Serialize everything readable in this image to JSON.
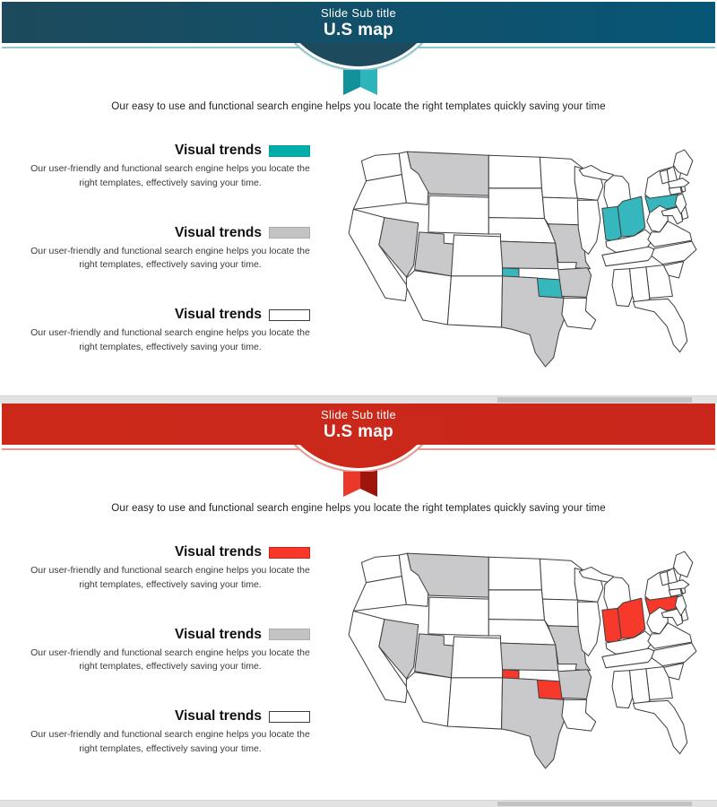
{
  "scrollbar": {
    "track_color": "#e2e2e3",
    "thumb_color": "#c2c2c3"
  },
  "slides": [
    {
      "theme": "teal",
      "header": {
        "subtitle": "Slide Sub title",
        "title": "U.S map",
        "band_gradient_left": "#1d4a5c",
        "band_gradient_right": "#075677",
        "underline_color": "#8fc7cb",
        "ribbon_left_color": "#13919b",
        "ribbon_right_color": "#2eb5bb"
      },
      "intro": "Our easy to use and functional search engine helps you locate the right templates quickly saving your time",
      "legend": [
        {
          "title": "Visual trends",
          "swatch": "accent",
          "description": "Our user-friendly and functional search engine helps you locate the right templates, effectively saving your time."
        },
        {
          "title": "Visual trends",
          "swatch": "gray",
          "description": "Our user-friendly and functional search engine helps you locate the right templates, effectively saving your time."
        },
        {
          "title": "Visual trends",
          "swatch": "white",
          "description": "Our user-friendly and functional search engine helps you locate the right templates, effectively saving your time."
        }
      ],
      "colors": {
        "accent_swatch": "#00ada9",
        "accent_swatch_border": "#079e9b",
        "gray_swatch": "#c3c3c3",
        "gray_swatch_border": "#ababab",
        "white_swatch_border": "#3c3c3c",
        "map_accent": "#36b7bd",
        "map_gray": "#c9c9cc"
      },
      "map": {
        "accent_states": [
          "Indiana",
          "Ohio",
          "Pennsylvania",
          "Oklahoma"
        ],
        "gray_states": [
          "Montana",
          "Nevada",
          "Utah",
          "Kansas",
          "Missouri",
          "Arkansas",
          "Texas"
        ]
      }
    },
    {
      "theme": "red",
      "header": {
        "subtitle": "Slide Sub title",
        "title": "U.S map",
        "band_gradient_left": "#cb2819",
        "band_gradient_right": "#c9271b",
        "underline_color": "#e59b94",
        "ribbon_left_color": "#ea392a",
        "ribbon_right_color": "#9e150b"
      },
      "intro": "Our easy to use and functional search engine helps you locate the right templates quickly saving your time",
      "legend": [
        {
          "title": "Visual trends",
          "swatch": "accent",
          "description": "Our user-friendly and functional search engine helps you locate the right templates, effectively saving your time."
        },
        {
          "title": "Visual trends",
          "swatch": "gray",
          "description": "Our user-friendly and functional search engine helps you locate the right templates, effectively saving your time."
        },
        {
          "title": "Visual trends",
          "swatch": "white",
          "description": "Our user-friendly and functional search engine helps you locate the right templates, effectively saving your time."
        }
      ],
      "colors": {
        "accent_swatch": "#f9382b",
        "accent_swatch_border": "#c6271c",
        "gray_swatch": "#c3c3c3",
        "gray_swatch_border": "#ababab",
        "white_swatch_border": "#3c3c3c",
        "map_accent": "#f6392b",
        "map_gray": "#c9c9cc"
      },
      "map": {
        "accent_states": [
          "Indiana",
          "Ohio",
          "Pennsylvania",
          "Oklahoma"
        ],
        "gray_states": [
          "Montana",
          "Nevada",
          "Utah",
          "Kansas",
          "Missouri",
          "Arkansas",
          "Texas"
        ]
      }
    }
  ]
}
